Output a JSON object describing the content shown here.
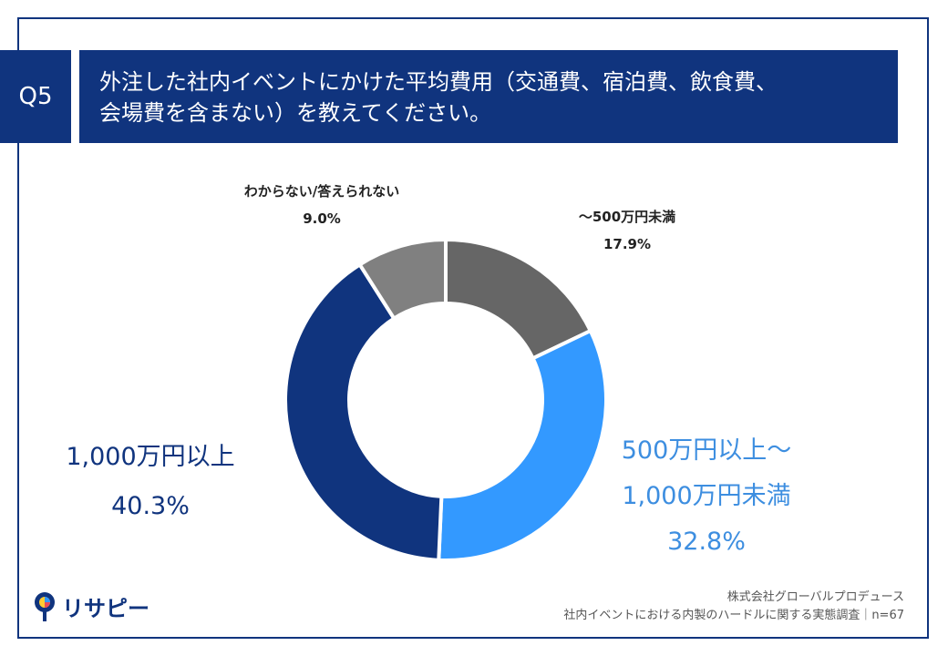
{
  "header": {
    "question_number": "Q5",
    "title_line1": "外注した社内イベントにかけた平均費用（交通費、宿泊費、飲食費、",
    "title_line2": "会場費を含まない）を教えてください。"
  },
  "chart_data": {
    "type": "pie",
    "donut": true,
    "categories": [
      "～500万円未満",
      "500万円以上～1,000万円未満",
      "1,000万円以上",
      "わからない/答えられない"
    ],
    "values": [
      17.9,
      32.8,
      40.3,
      9.0
    ],
    "value_labels": [
      "17.9%",
      "32.8%",
      "40.3%",
      "9.0%"
    ],
    "colors": [
      "#666666",
      "#3399ff",
      "#10347e",
      "#808080"
    ],
    "label_parts": {
      "cat0": "～500万円未満",
      "cat1_line1": "500万円以上～",
      "cat1_line2": "1,000万円未満",
      "cat2": "1,000万円以上",
      "cat3": "わからない/答えられない"
    }
  },
  "footer": {
    "source_line1": "株式会社グローバルプロデュース",
    "source_line2": "社内イベントにおける内製のハードルに関する実態調査｜n=67",
    "logo_text": "リサピー"
  }
}
